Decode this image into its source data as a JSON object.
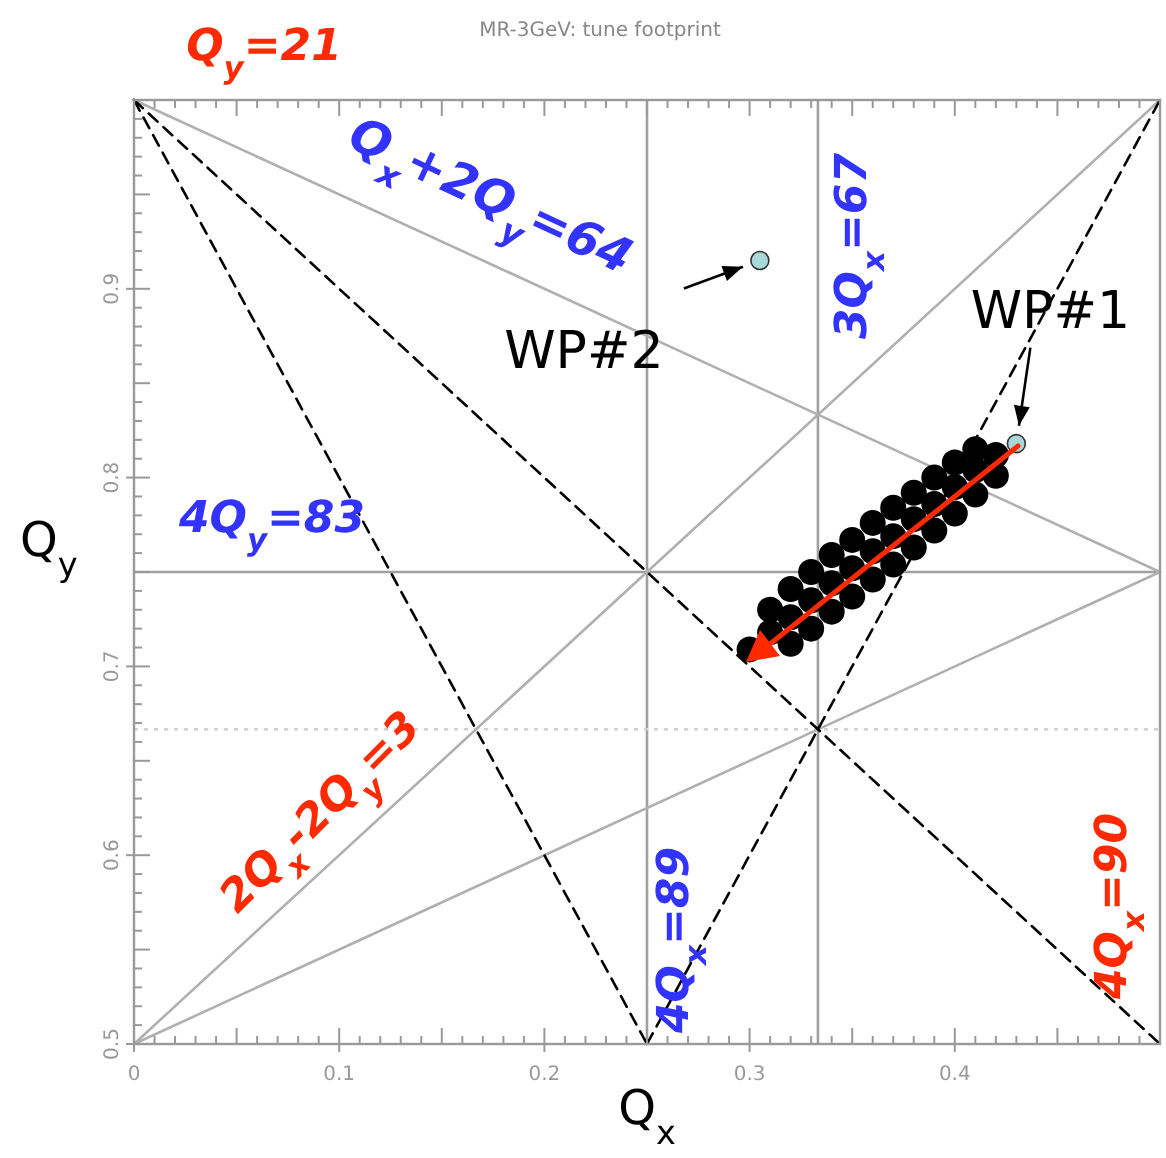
{
  "chart_data": {
    "type": "scatter",
    "title": "MR-3GeV: tune footprint",
    "xlabel": "Q$_{x}$",
    "ylabel": "Q$_{y}$",
    "xlim": [
      0,
      0.5
    ],
    "ylim": [
      0.5,
      1.0
    ],
    "xticks": [
      0,
      0.1,
      0.2,
      0.3,
      0.4
    ],
    "yticks": [
      0.5,
      0.6,
      0.7,
      0.8,
      0.9
    ],
    "grid": false,
    "ref_lines": [
      {
        "axis": "x",
        "value": 0.25,
        "color": "#a0a0a0",
        "line_style": "solid"
      },
      {
        "axis": "x",
        "value": 0.3333,
        "color": "#a0a0a0",
        "line_style": "solid"
      },
      {
        "axis": "y",
        "value": 0.75,
        "color": "#a0a0a0",
        "line_style": "solid"
      },
      {
        "axis": "y",
        "value": 0.6667,
        "color": "#d0d0d0",
        "line_style": "dotted"
      }
    ],
    "series": [
      {
        "type": "line",
        "color": "#b0b0b0",
        "line_style": "solid",
        "x": [
          0,
          0.5
        ],
        "values": [
          1.0,
          0.75
        ]
      },
      {
        "type": "line",
        "color": "#b0b0b0",
        "line_style": "solid",
        "x": [
          0,
          0.5
        ],
        "values": [
          0.5,
          1.0
        ]
      },
      {
        "type": "line",
        "color": "#b0b0b0",
        "line_style": "solid",
        "x": [
          0,
          0.5
        ],
        "values": [
          0.5,
          0.75
        ]
      },
      {
        "type": "line",
        "color": "#000000",
        "line_style": "dashed",
        "x": [
          0,
          0.25
        ],
        "values": [
          1.0,
          0.5
        ]
      },
      {
        "type": "line",
        "color": "#000000",
        "line_style": "dashed",
        "x": [
          0,
          0.5
        ],
        "values": [
          1.0,
          0.5
        ]
      },
      {
        "type": "line",
        "color": "#000000",
        "line_style": "dashed",
        "x": [
          0.25,
          0.5
        ],
        "values": [
          0.5,
          1.0
        ]
      },
      {
        "color": "#000000",
        "marker": "circle",
        "x": [
          0.3,
          0.31,
          0.32,
          0.33,
          0.34,
          0.35,
          0.36,
          0.37,
          0.38,
          0.39,
          0.4,
          0.41,
          0.42,
          0.31,
          0.32,
          0.33,
          0.34,
          0.35,
          0.36,
          0.37,
          0.38,
          0.39,
          0.4,
          0.41,
          0.32,
          0.33,
          0.34,
          0.35,
          0.36,
          0.37,
          0.38,
          0.39,
          0.4,
          0.41,
          0.42
        ],
        "values": [
          0.709,
          0.718,
          0.726,
          0.735,
          0.744,
          0.752,
          0.761,
          0.769,
          0.778,
          0.786,
          0.795,
          0.804,
          0.812,
          0.73,
          0.741,
          0.75,
          0.759,
          0.767,
          0.776,
          0.784,
          0.792,
          0.8,
          0.808,
          0.815,
          0.712,
          0.72,
          0.729,
          0.737,
          0.746,
          0.754,
          0.763,
          0.772,
          0.781,
          0.791,
          0.801
        ]
      },
      {
        "color": "#a8d8d8",
        "marker": "circle",
        "x": [
          0.305,
          0.43
        ],
        "values": [
          0.915,
          0.818
        ]
      }
    ],
    "annotations": [
      "Q$_{y}$=21",
      "Q$_{x}$+2Q$_{y}$=64",
      "3Q$_{x}$=67",
      "4Q$_{y}$=83",
      "2Q$_{x}$-2Q$_{y}$=3",
      "4Q$_{x}$=89",
      "4Q$_{x}$=90",
      {
        "text": "WP#2",
        "x": 0.305,
        "y": 0.915
      },
      {
        "text": "WP#1",
        "x": 0.43,
        "y": 0.818
      }
    ]
  }
}
